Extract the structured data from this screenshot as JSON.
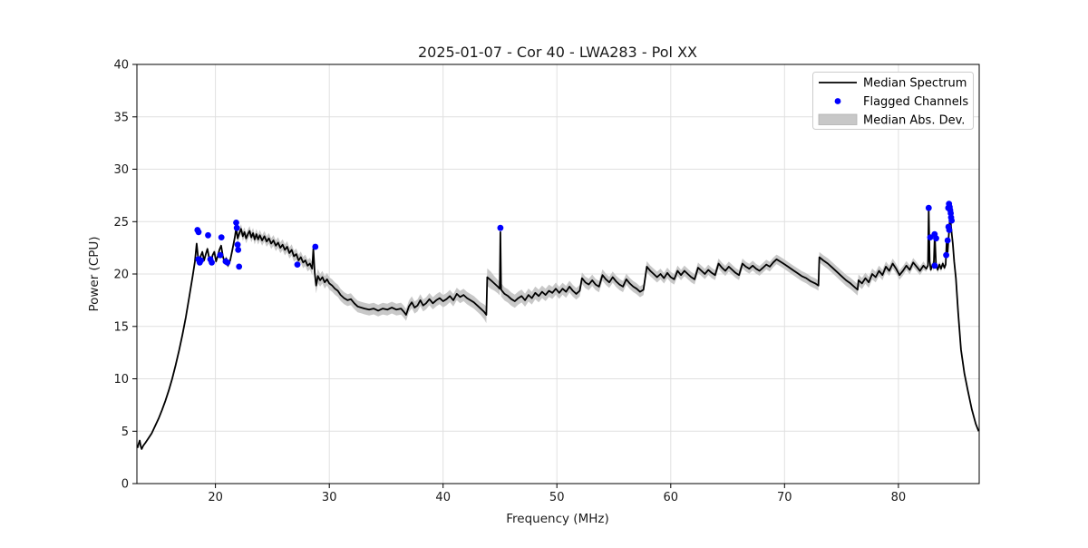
{
  "figure": {
    "background": "#ffffff"
  },
  "chart_data": {
    "type": "line",
    "title": "2025-01-07 - Cor 40 - LWA283 - Pol XX",
    "xlabel": "Frequency (MHz)",
    "ylabel": "Power (CPU)",
    "xlim": [
      13.1,
      87.1
    ],
    "ylim": [
      0,
      40
    ],
    "xticks": [
      20,
      30,
      40,
      50,
      60,
      70,
      80
    ],
    "yticks": [
      0,
      5,
      10,
      15,
      20,
      25,
      30,
      35,
      40
    ],
    "grid": true,
    "legend_position": "upper right",
    "legend": [
      {
        "label": "Median Spectrum",
        "type": "line"
      },
      {
        "label": "Flagged Channels",
        "type": "marker"
      },
      {
        "label": "Median Abs. Dev.",
        "type": "patch"
      }
    ],
    "colors": {
      "line": "#000000",
      "flagged": "#0000ff",
      "band": "#c8c8c8",
      "grid": "#e0e0e0",
      "spine": "#000000",
      "legend_border": "#cccccc"
    },
    "spectrum": [
      [
        13.15,
        3.4
      ],
      [
        13.25,
        3.8
      ],
      [
        13.35,
        4.1
      ],
      [
        13.45,
        3.5
      ],
      [
        13.52,
        3.3
      ],
      [
        13.65,
        3.6
      ],
      [
        13.85,
        3.9
      ],
      [
        14.1,
        4.3
      ],
      [
        14.4,
        4.8
      ],
      [
        14.7,
        5.5
      ],
      [
        15.0,
        6.2
      ],
      [
        15.3,
        7.0
      ],
      [
        15.6,
        7.9
      ],
      [
        15.9,
        8.9
      ],
      [
        16.2,
        10.0
      ],
      [
        16.5,
        11.3
      ],
      [
        16.8,
        12.7
      ],
      [
        17.1,
        14.2
      ],
      [
        17.4,
        15.9
      ],
      [
        17.7,
        17.8
      ],
      [
        18.0,
        19.8
      ],
      [
        18.2,
        21.2
      ],
      [
        18.35,
        22.9
      ],
      [
        18.45,
        21.8
      ],
      [
        18.55,
        20.9
      ],
      [
        18.7,
        21.7
      ],
      [
        18.85,
        22.1
      ],
      [
        19.0,
        21.3
      ],
      [
        19.15,
        21.9
      ],
      [
        19.3,
        22.4
      ],
      [
        19.45,
        21.5
      ],
      [
        19.6,
        21.0
      ],
      [
        19.75,
        21.8
      ],
      [
        19.9,
        22.1
      ],
      [
        20.05,
        21.2
      ],
      [
        20.2,
        21.7
      ],
      [
        20.35,
        22.3
      ],
      [
        20.5,
        22.7
      ],
      [
        20.65,
        21.7
      ],
      [
        20.8,
        21.1
      ],
      [
        20.95,
        21.5
      ],
      [
        21.1,
        20.8
      ],
      [
        21.3,
        21.3
      ],
      [
        21.5,
        22.4
      ],
      [
        21.7,
        23.5
      ],
      [
        21.82,
        24.4
      ],
      [
        21.95,
        23.4
      ],
      [
        22.1,
        23.9
      ],
      [
        22.25,
        24.3
      ],
      [
        22.4,
        23.6
      ],
      [
        22.55,
        24.0
      ],
      [
        22.7,
        23.4
      ],
      [
        22.85,
        23.8
      ],
      [
        23.0,
        24.1
      ],
      [
        23.15,
        23.5
      ],
      [
        23.3,
        23.9
      ],
      [
        23.45,
        23.3
      ],
      [
        23.6,
        23.8
      ],
      [
        23.75,
        23.3
      ],
      [
        23.9,
        23.7
      ],
      [
        24.1,
        23.2
      ],
      [
        24.3,
        23.6
      ],
      [
        24.5,
        23.1
      ],
      [
        24.7,
        23.4
      ],
      [
        24.9,
        22.9
      ],
      [
        25.1,
        23.2
      ],
      [
        25.3,
        22.7
      ],
      [
        25.5,
        23.0
      ],
      [
        25.7,
        22.5
      ],
      [
        25.9,
        22.8
      ],
      [
        26.1,
        22.3
      ],
      [
        26.3,
        22.6
      ],
      [
        26.5,
        22.0
      ],
      [
        26.7,
        22.3
      ],
      [
        26.9,
        21.7
      ],
      [
        27.1,
        21.9
      ],
      [
        27.3,
        21.3
      ],
      [
        27.5,
        21.6
      ],
      [
        27.7,
        21.1
      ],
      [
        27.9,
        21.3
      ],
      [
        28.1,
        20.8
      ],
      [
        28.3,
        21.0
      ],
      [
        28.5,
        20.5
      ],
      [
        28.6,
        22.4
      ],
      [
        28.72,
        20.1
      ],
      [
        28.85,
        18.9
      ],
      [
        29.0,
        19.8
      ],
      [
        29.2,
        19.4
      ],
      [
        29.4,
        19.7
      ],
      [
        29.6,
        19.2
      ],
      [
        29.8,
        19.5
      ],
      [
        30.0,
        19.1
      ],
      [
        30.25,
        18.9
      ],
      [
        30.5,
        18.6
      ],
      [
        30.75,
        18.4
      ],
      [
        31.0,
        18.0
      ],
      [
        31.3,
        17.7
      ],
      [
        31.6,
        17.5
      ],
      [
        31.9,
        17.6
      ],
      [
        32.2,
        17.2
      ],
      [
        32.5,
        16.9
      ],
      [
        32.8,
        16.8
      ],
      [
        33.1,
        16.7
      ],
      [
        33.5,
        16.6
      ],
      [
        33.9,
        16.7
      ],
      [
        34.3,
        16.5
      ],
      [
        34.7,
        16.7
      ],
      [
        35.1,
        16.6
      ],
      [
        35.5,
        16.8
      ],
      [
        35.9,
        16.6
      ],
      [
        36.3,
        16.7
      ],
      [
        36.55,
        16.4
      ],
      [
        36.75,
        16.1
      ],
      [
        37.0,
        16.9
      ],
      [
        37.25,
        17.3
      ],
      [
        37.5,
        16.8
      ],
      [
        37.75,
        17.0
      ],
      [
        38.0,
        17.5
      ],
      [
        38.25,
        17.0
      ],
      [
        38.5,
        17.2
      ],
      [
        38.8,
        17.6
      ],
      [
        39.1,
        17.2
      ],
      [
        39.4,
        17.5
      ],
      [
        39.7,
        17.7
      ],
      [
        40.0,
        17.4
      ],
      [
        40.3,
        17.6
      ],
      [
        40.6,
        17.9
      ],
      [
        40.9,
        17.5
      ],
      [
        41.2,
        18.1
      ],
      [
        41.5,
        17.8
      ],
      [
        41.8,
        18.0
      ],
      [
        42.1,
        17.7
      ],
      [
        42.4,
        17.5
      ],
      [
        42.7,
        17.3
      ],
      [
        43.0,
        17.0
      ],
      [
        43.3,
        16.7
      ],
      [
        43.6,
        16.4
      ],
      [
        43.8,
        16.1
      ],
      [
        43.88,
        19.7
      ],
      [
        44.2,
        19.4
      ],
      [
        44.5,
        19.1
      ],
      [
        44.8,
        18.8
      ],
      [
        44.98,
        18.6
      ],
      [
        45.03,
        24.0
      ],
      [
        45.1,
        18.5
      ],
      [
        45.4,
        18.1
      ],
      [
        45.7,
        17.9
      ],
      [
        46.0,
        17.6
      ],
      [
        46.3,
        17.4
      ],
      [
        46.6,
        17.7
      ],
      [
        46.9,
        17.9
      ],
      [
        47.2,
        17.5
      ],
      [
        47.5,
        18.0
      ],
      [
        47.8,
        17.7
      ],
      [
        48.1,
        18.2
      ],
      [
        48.4,
        17.9
      ],
      [
        48.7,
        18.3
      ],
      [
        49.0,
        18.0
      ],
      [
        49.3,
        18.4
      ],
      [
        49.6,
        18.2
      ],
      [
        49.9,
        18.6
      ],
      [
        50.2,
        18.2
      ],
      [
        50.5,
        18.6
      ],
      [
        50.8,
        18.3
      ],
      [
        51.1,
        18.8
      ],
      [
        51.4,
        18.4
      ],
      [
        51.7,
        18.1
      ],
      [
        52.0,
        18.4
      ],
      [
        52.2,
        19.6
      ],
      [
        52.5,
        19.2
      ],
      [
        52.8,
        19.0
      ],
      [
        53.1,
        19.4
      ],
      [
        53.4,
        19.0
      ],
      [
        53.7,
        18.8
      ],
      [
        54.0,
        19.9
      ],
      [
        54.3,
        19.5
      ],
      [
        54.6,
        19.2
      ],
      [
        54.9,
        19.7
      ],
      [
        55.2,
        19.3
      ],
      [
        55.5,
        19.0
      ],
      [
        55.8,
        18.8
      ],
      [
        56.1,
        19.5
      ],
      [
        56.4,
        19.1
      ],
      [
        56.7,
        18.8
      ],
      [
        57.0,
        18.6
      ],
      [
        57.3,
        18.3
      ],
      [
        57.6,
        18.5
      ],
      [
        57.9,
        20.7
      ],
      [
        58.2,
        20.3
      ],
      [
        58.5,
        20.0
      ],
      [
        58.8,
        19.7
      ],
      [
        59.1,
        20.0
      ],
      [
        59.4,
        19.6
      ],
      [
        59.7,
        20.1
      ],
      [
        60.0,
        19.7
      ],
      [
        60.3,
        19.5
      ],
      [
        60.6,
        20.3
      ],
      [
        60.9,
        19.9
      ],
      [
        61.2,
        20.3
      ],
      [
        61.5,
        20.0
      ],
      [
        61.8,
        19.7
      ],
      [
        62.1,
        19.5
      ],
      [
        62.4,
        20.6
      ],
      [
        62.7,
        20.3
      ],
      [
        63.0,
        20.0
      ],
      [
        63.3,
        20.4
      ],
      [
        63.6,
        20.1
      ],
      [
        63.9,
        19.9
      ],
      [
        64.2,
        21.0
      ],
      [
        64.5,
        20.6
      ],
      [
        64.8,
        20.3
      ],
      [
        65.1,
        20.7
      ],
      [
        65.4,
        20.4
      ],
      [
        65.7,
        20.1
      ],
      [
        66.0,
        19.9
      ],
      [
        66.3,
        21.0
      ],
      [
        66.6,
        20.7
      ],
      [
        66.9,
        20.5
      ],
      [
        67.2,
        20.8
      ],
      [
        67.5,
        20.5
      ],
      [
        67.8,
        20.3
      ],
      [
        68.1,
        20.6
      ],
      [
        68.4,
        20.9
      ],
      [
        68.7,
        20.7
      ],
      [
        69.0,
        21.1
      ],
      [
        69.3,
        21.4
      ],
      [
        69.6,
        21.2
      ],
      [
        69.9,
        21.0
      ],
      [
        70.3,
        20.7
      ],
      [
        70.7,
        20.4
      ],
      [
        71.1,
        20.1
      ],
      [
        71.5,
        19.8
      ],
      [
        71.9,
        19.6
      ],
      [
        72.3,
        19.3
      ],
      [
        72.7,
        19.1
      ],
      [
        72.98,
        18.9
      ],
      [
        73.06,
        21.6
      ],
      [
        73.4,
        21.3
      ],
      [
        73.8,
        21.0
      ],
      [
        74.2,
        20.6
      ],
      [
        74.6,
        20.2
      ],
      [
        75.0,
        19.8
      ],
      [
        75.4,
        19.4
      ],
      [
        75.8,
        19.1
      ],
      [
        76.2,
        18.7
      ],
      [
        76.42,
        18.5
      ],
      [
        76.5,
        19.4
      ],
      [
        76.8,
        19.1
      ],
      [
        77.1,
        19.6
      ],
      [
        77.4,
        19.2
      ],
      [
        77.7,
        20.0
      ],
      [
        78.0,
        19.7
      ],
      [
        78.3,
        20.3
      ],
      [
        78.6,
        19.9
      ],
      [
        78.9,
        20.7
      ],
      [
        79.2,
        20.3
      ],
      [
        79.5,
        21.0
      ],
      [
        79.8,
        20.5
      ],
      [
        80.1,
        19.9
      ],
      [
        80.4,
        20.3
      ],
      [
        80.7,
        20.8
      ],
      [
        81.0,
        20.4
      ],
      [
        81.3,
        21.1
      ],
      [
        81.6,
        20.7
      ],
      [
        81.9,
        20.3
      ],
      [
        82.2,
        20.8
      ],
      [
        82.45,
        20.5
      ],
      [
        82.6,
        20.8
      ],
      [
        82.66,
        26.2
      ],
      [
        82.75,
        21.2
      ],
      [
        82.85,
        20.4
      ],
      [
        83.0,
        20.9
      ],
      [
        83.1,
        20.6
      ],
      [
        83.2,
        23.8
      ],
      [
        83.3,
        21.0
      ],
      [
        83.45,
        20.4
      ],
      [
        83.6,
        20.9
      ],
      [
        83.75,
        20.5
      ],
      [
        83.9,
        21.0
      ],
      [
        84.05,
        20.6
      ],
      [
        84.15,
        20.9
      ],
      [
        84.25,
        23.3
      ],
      [
        84.33,
        22.1
      ],
      [
        84.42,
        23.6
      ],
      [
        84.5,
        25.0
      ],
      [
        84.57,
        25.4
      ],
      [
        84.63,
        24.5
      ],
      [
        84.7,
        23.7
      ],
      [
        84.78,
        22.9
      ],
      [
        84.9,
        21.2
      ],
      [
        85.05,
        19.6
      ],
      [
        85.25,
        16.3
      ],
      [
        85.5,
        12.8
      ],
      [
        85.8,
        10.5
      ],
      [
        86.1,
        8.9
      ],
      [
        86.45,
        7.1
      ],
      [
        86.8,
        5.7
      ],
      [
        87.05,
        5.0
      ]
    ],
    "mad": [
      [
        13.1,
        0.05
      ],
      [
        17.5,
        0.08
      ],
      [
        18.3,
        0.2
      ],
      [
        21.3,
        0.25
      ],
      [
        21.6,
        0.45
      ],
      [
        24.0,
        0.5
      ],
      [
        28.4,
        0.55
      ],
      [
        28.75,
        0.8
      ],
      [
        29.2,
        0.6
      ],
      [
        33.0,
        0.55
      ],
      [
        43.4,
        0.6
      ],
      [
        44.0,
        0.9
      ],
      [
        44.6,
        0.65
      ],
      [
        52.0,
        0.55
      ],
      [
        70.0,
        0.45
      ],
      [
        76.4,
        0.55
      ],
      [
        82.3,
        0.4
      ],
      [
        82.66,
        0.12
      ],
      [
        83.0,
        0.35
      ],
      [
        84.3,
        0.25
      ],
      [
        84.8,
        0.08
      ],
      [
        85.1,
        0.02
      ],
      [
        87.1,
        0.0
      ]
    ],
    "flagged": [
      [
        18.42,
        24.2
      ],
      [
        18.52,
        24.0
      ],
      [
        18.5,
        21.4
      ],
      [
        18.62,
        21.1
      ],
      [
        18.72,
        21.3
      ],
      [
        19.35,
        23.7
      ],
      [
        19.55,
        21.4
      ],
      [
        19.68,
        21.1
      ],
      [
        20.42,
        21.8
      ],
      [
        20.52,
        23.5
      ],
      [
        20.9,
        21.2
      ],
      [
        21.05,
        21.1
      ],
      [
        21.82,
        24.9
      ],
      [
        21.88,
        24.4
      ],
      [
        21.95,
        22.8
      ],
      [
        22.0,
        22.3
      ],
      [
        22.08,
        20.7
      ],
      [
        27.2,
        20.9
      ],
      [
        28.78,
        22.6
      ],
      [
        45.03,
        24.4
      ],
      [
        82.66,
        26.3
      ],
      [
        82.8,
        23.5
      ],
      [
        83.18,
        23.8
      ],
      [
        83.32,
        23.4
      ],
      [
        83.2,
        20.8
      ],
      [
        84.2,
        21.8
      ],
      [
        84.33,
        23.2
      ],
      [
        84.4,
        24.5
      ],
      [
        84.47,
        24.2
      ],
      [
        84.38,
        26.3
      ],
      [
        84.45,
        26.7
      ],
      [
        84.5,
        26.4
      ],
      [
        84.55,
        26.1
      ],
      [
        84.6,
        25.8
      ],
      [
        84.63,
        25.4
      ],
      [
        84.68,
        25.1
      ]
    ]
  }
}
